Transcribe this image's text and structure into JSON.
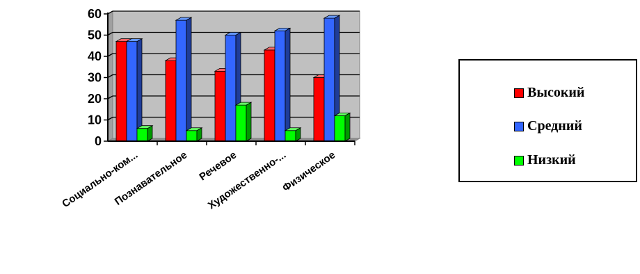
{
  "colors": {
    "plot_bg": "#c0c0c0",
    "front": [
      "#ff0000",
      "#3366ff",
      "#00ff00"
    ],
    "side": [
      "#990000",
      "#1f3d99",
      "#009900"
    ],
    "top": [
      "#ff6666",
      "#6699ff",
      "#66ff66"
    ]
  },
  "chart_data": {
    "type": "bar",
    "title": "",
    "xlabel": "",
    "ylabel": "",
    "ylim": [
      0,
      60
    ],
    "yticks": [
      "0",
      "10",
      "20",
      "30",
      "40",
      "50",
      "60"
    ],
    "categories": [
      "Социально-ком...",
      "Познавательное",
      "Речевое",
      "Художественно-...",
      "Физическое"
    ],
    "series": [
      {
        "name": "Высокий",
        "values": [
          47,
          38,
          33,
          43,
          30
        ]
      },
      {
        "name": "Средний",
        "values": [
          47,
          57,
          50,
          52,
          58
        ]
      },
      {
        "name": "Низкий",
        "values": [
          6,
          5,
          17,
          5,
          12
        ]
      }
    ],
    "grid": true,
    "legend_position": "right"
  }
}
